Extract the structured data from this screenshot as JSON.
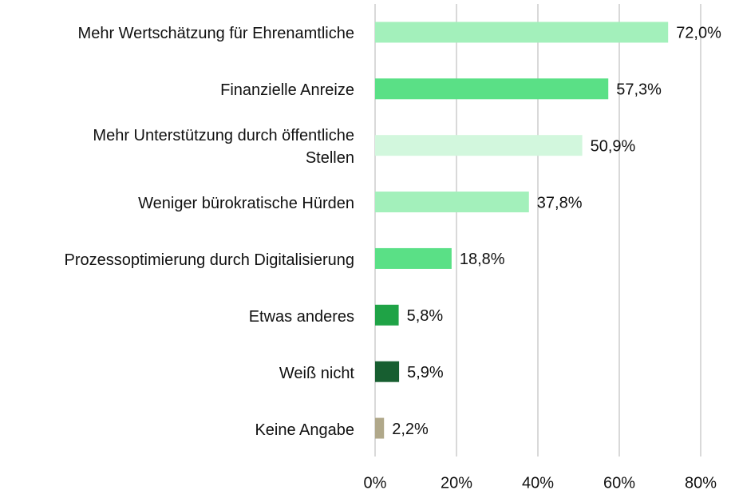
{
  "chart_data": {
    "type": "hbar",
    "categories": [
      "Mehr Wertschätzung für Ehrenamtliche",
      "Finanzielle Anreize",
      "Mehr Unterstützung durch öffentliche\nStellen",
      "Weniger bürokratische Hürden",
      "Prozessoptimierung durch Digitalisierung",
      "Etwas anderes",
      "Weiß nicht",
      "Keine Angabe"
    ],
    "values": [
      72.0,
      57.3,
      50.9,
      37.8,
      18.8,
      5.8,
      5.9,
      2.2
    ],
    "value_labels": [
      "72,0%",
      "57,3%",
      "50,9%",
      "37,8%",
      "18,8%",
      "5,8%",
      "5,9%",
      "2,2%"
    ],
    "colors": [
      "#a3f0bb",
      "#5ae086",
      "#d2f7dd",
      "#a3f0bb",
      "#5ae086",
      "#1fa346",
      "#175e30",
      "#b0a88a"
    ],
    "xlim": [
      0,
      80
    ],
    "xticks": [
      {
        "value": 0,
        "label": "0%"
      },
      {
        "value": 20,
        "label": "20%"
      },
      {
        "value": 40,
        "label": "40%"
      },
      {
        "value": 60,
        "label": "60%"
      },
      {
        "value": 80,
        "label": "80%"
      }
    ],
    "grid": true
  }
}
